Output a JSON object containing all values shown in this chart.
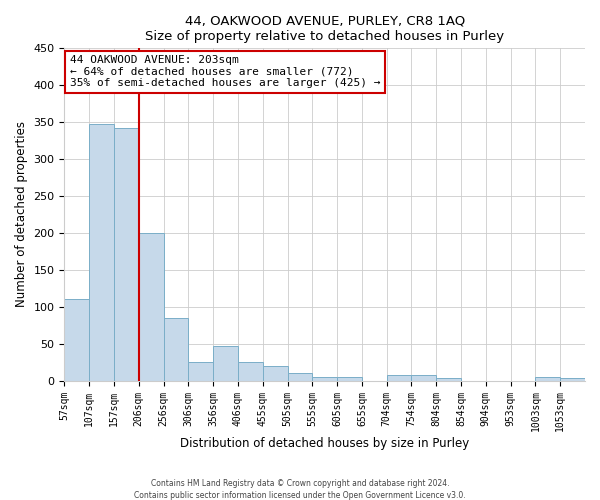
{
  "title": "44, OAKWOOD AVENUE, PURLEY, CR8 1AQ",
  "subtitle": "Size of property relative to detached houses in Purley",
  "xlabel": "Distribution of detached houses by size in Purley",
  "ylabel": "Number of detached properties",
  "bin_labels": [
    "57sqm",
    "107sqm",
    "157sqm",
    "206sqm",
    "256sqm",
    "306sqm",
    "356sqm",
    "406sqm",
    "455sqm",
    "505sqm",
    "555sqm",
    "605sqm",
    "655sqm",
    "704sqm",
    "754sqm",
    "804sqm",
    "854sqm",
    "904sqm",
    "953sqm",
    "1003sqm",
    "1053sqm"
  ],
  "bar_heights": [
    110,
    348,
    342,
    200,
    85,
    25,
    47,
    25,
    20,
    10,
    5,
    5,
    0,
    7,
    7,
    3,
    0,
    0,
    0,
    5,
    3
  ],
  "bar_color": "#c6d9ea",
  "bar_edge_color": "#7aaec8",
  "vline_x_index": 3,
  "vline_color": "#cc0000",
  "annotation_title": "44 OAKWOOD AVENUE: 203sqm",
  "annotation_line1": "← 64% of detached houses are smaller (772)",
  "annotation_line2": "35% of semi-detached houses are larger (425) →",
  "annotation_box_color": "#ffffff",
  "annotation_box_edge": "#cc0000",
  "ylim": [
    0,
    450
  ],
  "yticks": [
    0,
    50,
    100,
    150,
    200,
    250,
    300,
    350,
    400,
    450
  ],
  "footer1": "Contains HM Land Registry data © Crown copyright and database right 2024.",
  "footer2": "Contains public sector information licensed under the Open Government Licence v3.0."
}
